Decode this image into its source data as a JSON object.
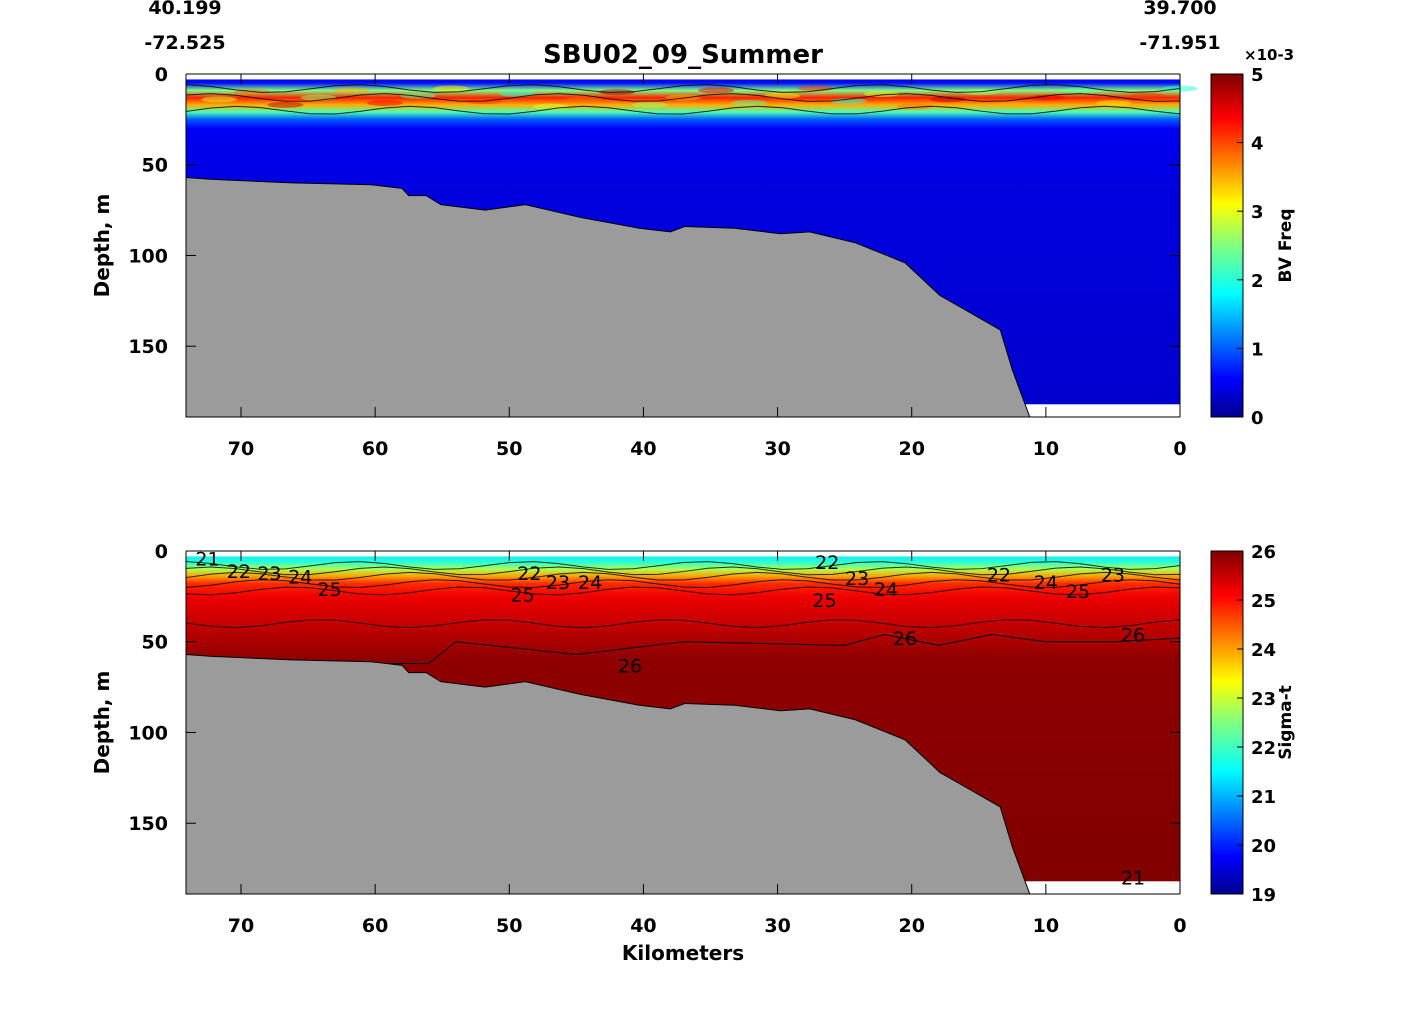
{
  "chart_data": {
    "title": "SBU02_09_Summer",
    "corner_labels": {
      "left_lat": "40.199",
      "left_lon": "-72.525",
      "right_lat": "39.700",
      "right_lon": "-71.951"
    },
    "xlabel": "Kilometers",
    "xlim": [
      74.1,
      0
    ],
    "xticks": [
      70,
      60,
      50,
      40,
      30,
      20,
      10,
      0
    ],
    "bathymetry": [
      [
        74.1,
        57
      ],
      [
        72.3,
        58
      ],
      [
        66.2,
        60
      ],
      [
        60.3,
        61
      ],
      [
        58,
        63
      ],
      [
        57.5,
        67
      ],
      [
        56.2,
        67
      ],
      [
        55.1,
        72
      ],
      [
        51.8,
        75
      ],
      [
        48.8,
        72
      ],
      [
        44.7,
        79
      ],
      [
        40.3,
        85
      ],
      [
        38,
        87
      ],
      [
        36.9,
        84
      ],
      [
        33.2,
        85
      ],
      [
        29.8,
        88
      ],
      [
        27.6,
        87
      ],
      [
        24.2,
        93
      ],
      [
        20.5,
        104
      ],
      [
        17.9,
        122
      ],
      [
        16,
        130
      ],
      [
        13.4,
        141
      ],
      [
        12.5,
        163
      ],
      [
        11.2,
        189
      ]
    ],
    "panels": [
      {
        "type": "heatmap",
        "name": "bv-freq",
        "ylabel": "Depth, m",
        "ylim": [
          0,
          189
        ],
        "yticks": [
          0,
          50,
          100,
          150
        ],
        "colorbar": {
          "label": "BV Freq",
          "exponent": "×10-3",
          "range": [
            0,
            5
          ],
          "ticks": [
            0,
            1,
            2,
            3,
            4,
            5
          ]
        },
        "layer_profile": [
          [
            0,
            0.3
          ],
          [
            5,
            0.6
          ],
          [
            9,
            2.5
          ],
          [
            13,
            4.2
          ],
          [
            17,
            3.5
          ],
          [
            21,
            2.2
          ],
          [
            25,
            1.0
          ],
          [
            30,
            0.5
          ],
          [
            60,
            0.4
          ],
          [
            189,
            0.3
          ]
        ],
        "contour_labels": []
      },
      {
        "type": "heatmap",
        "name": "sigma-t",
        "ylabel": "Depth, m",
        "ylim": [
          0,
          189
        ],
        "yticks": [
          0,
          50,
          100,
          150
        ],
        "colorbar": {
          "label": "Sigma-t",
          "exponent": "",
          "range": [
            19,
            26
          ],
          "ticks": [
            19,
            20,
            21,
            22,
            23,
            24,
            25,
            26
          ]
        },
        "layer_profile": [
          [
            0,
            21.3
          ],
          [
            6,
            21.8
          ],
          [
            10,
            22.8
          ],
          [
            14,
            24.0
          ],
          [
            18,
            24.8
          ],
          [
            25,
            25.2
          ],
          [
            40,
            25.5
          ],
          [
            60,
            25.9
          ],
          [
            189,
            26
          ]
        ],
        "contour_labels": [
          {
            "text": "21",
            "km": 72.5,
            "depth": 4
          },
          {
            "text": "22",
            "km": 71.5,
            "depth": 11
          },
          {
            "text": "23",
            "km": 72.8,
            "depth": 12
          },
          {
            "text": "24",
            "km": 70.5,
            "depth": 14
          },
          {
            "text": "25",
            "km": 71,
            "depth": 21
          },
          {
            "text": "22",
            "km": 48.5,
            "depth": 12
          },
          {
            "text": "23",
            "km": 49.5,
            "depth": 17
          },
          {
            "text": "24",
            "km": 48,
            "depth": 17
          },
          {
            "text": "25",
            "km": 49,
            "depth": 24
          },
          {
            "text": "22",
            "km": 26.3,
            "depth": 6
          },
          {
            "text": "23",
            "km": 27.2,
            "depth": 15
          },
          {
            "text": "24",
            "km": 25.5,
            "depth": 21
          },
          {
            "text": "25",
            "km": 26.5,
            "depth": 27
          },
          {
            "text": "26",
            "km": 41,
            "depth": 63
          },
          {
            "text": "26",
            "km": 20.5,
            "depth": 48
          },
          {
            "text": "22",
            "km": 13.5,
            "depth": 13
          },
          {
            "text": "24",
            "km": 10,
            "depth": 17
          },
          {
            "text": "25",
            "km": 8.5,
            "depth": 22
          },
          {
            "text": "23",
            "km": 5,
            "depth": 13
          },
          {
            "text": "26",
            "km": 3.5,
            "depth": 46
          },
          {
            "text": "21",
            "km": 3.5,
            "depth": 180
          }
        ]
      }
    ]
  }
}
